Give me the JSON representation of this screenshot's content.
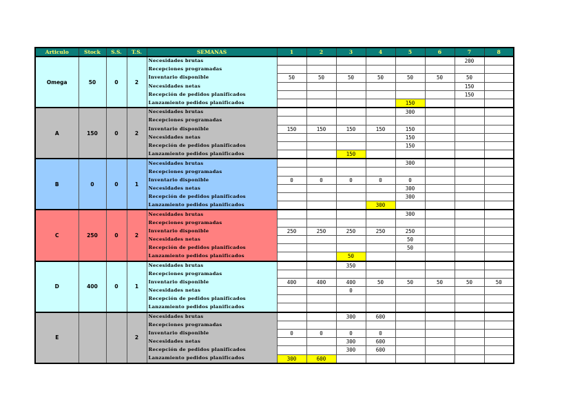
{
  "header": {
    "articulo": "Articulo",
    "stock": "Stock",
    "ss": "S.S.",
    "ts": "T.S.",
    "semanas": "SEMANAS",
    "weeks": [
      "1",
      "2",
      "3",
      "4",
      "5",
      "6",
      "7",
      "8"
    ]
  },
  "row_labels": [
    "Necesidades brutas",
    "Recepciones programadas",
    "Inventario disponible",
    "Necesidades netas",
    "Recepción de pedidos planificados",
    "Lanzamiento pedidos planificados"
  ],
  "highlight_color": "#ffff00",
  "articles": [
    {
      "name": "Omega",
      "stock": "50",
      "ss": "0",
      "ts": "2",
      "color": "#ccffff",
      "rows": [
        [
          "",
          "",
          "",
          "",
          "",
          "",
          "200",
          ""
        ],
        [
          "",
          "",
          "",
          "",
          "",
          "",
          "",
          ""
        ],
        [
          "50",
          "50",
          "50",
          "50",
          "50",
          "50",
          "50",
          ""
        ],
        [
          "",
          "",
          "",
          "",
          "",
          "",
          "150",
          ""
        ],
        [
          "",
          "",
          "",
          "",
          "",
          "",
          "150",
          ""
        ],
        [
          "",
          "",
          "",
          "",
          "150",
          "",
          "",
          ""
        ]
      ]
    },
    {
      "name": "A",
      "stock": "150",
      "ss": "0",
      "ts": "2",
      "color": "#c0c0c0",
      "rows": [
        [
          "",
          "",
          "",
          "",
          "300",
          "",
          "",
          ""
        ],
        [
          "",
          "",
          "",
          "",
          "",
          "",
          "",
          ""
        ],
        [
          "150",
          "150",
          "150",
          "150",
          "150",
          "",
          "",
          ""
        ],
        [
          "",
          "",
          "",
          "",
          "150",
          "",
          "",
          ""
        ],
        [
          "",
          "",
          "",
          "",
          "150",
          "",
          "",
          ""
        ],
        [
          "",
          "",
          "150",
          "",
          "",
          "",
          "",
          ""
        ]
      ]
    },
    {
      "name": "B",
      "stock": "0",
      "ss": "0",
      "ts": "1",
      "color": "#99ccff",
      "rows": [
        [
          "",
          "",
          "",
          "",
          "300",
          "",
          "",
          ""
        ],
        [
          "",
          "",
          "",
          "",
          "",
          "",
          "",
          ""
        ],
        [
          "0",
          "0",
          "0",
          "0",
          "0",
          "",
          "",
          ""
        ],
        [
          "",
          "",
          "",
          "",
          "300",
          "",
          "",
          ""
        ],
        [
          "",
          "",
          "",
          "",
          "300",
          "",
          "",
          ""
        ],
        [
          "",
          "",
          "",
          "300",
          "",
          "",
          "",
          ""
        ]
      ]
    },
    {
      "name": "C",
      "stock": "250",
      "ss": "0",
      "ts": "2",
      "color": "#ff8080",
      "rows": [
        [
          "",
          "",
          "",
          "",
          "300",
          "",
          "",
          ""
        ],
        [
          "",
          "",
          "",
          "",
          "",
          "",
          "",
          ""
        ],
        [
          "250",
          "250",
          "250",
          "250",
          "250",
          "",
          "",
          ""
        ],
        [
          "",
          "",
          "",
          "",
          "50",
          "",
          "",
          ""
        ],
        [
          "",
          "",
          "",
          "",
          "50",
          "",
          "",
          ""
        ],
        [
          "",
          "",
          "50",
          "",
          "",
          "",
          "",
          ""
        ]
      ]
    },
    {
      "name": "D",
      "stock": "400",
      "ss": "0",
      "ts": "1",
      "color": "#ccffff",
      "rows": [
        [
          "",
          "",
          "350",
          "",
          "",
          "",
          "",
          ""
        ],
        [
          "",
          "",
          "",
          "",
          "",
          "",
          "",
          ""
        ],
        [
          "400",
          "400",
          "400",
          "50",
          "50",
          "50",
          "50",
          "50"
        ],
        [
          "",
          "",
          "0",
          "",
          "",
          "",
          "",
          ""
        ],
        [
          "",
          "",
          "",
          "",
          "",
          "",
          "",
          ""
        ],
        [
          "",
          "",
          "",
          "",
          "",
          "",
          "",
          ""
        ]
      ]
    },
    {
      "name": "E",
      "stock": "",
      "ss": "",
      "ts": "2",
      "color": "#c0c0c0",
      "rows": [
        [
          "",
          "",
          "300",
          "600",
          "",
          "",
          "",
          ""
        ],
        [
          "",
          "",
          "",
          "",
          "",
          "",
          "",
          ""
        ],
        [
          "0",
          "0",
          "0",
          "0",
          "",
          "",
          "",
          ""
        ],
        [
          "",
          "",
          "300",
          "600",
          "",
          "",
          "",
          ""
        ],
        [
          "",
          "",
          "300",
          "600",
          "",
          "",
          "",
          ""
        ],
        [
          "300",
          "600",
          "",
          "",
          "",
          "",
          "",
          ""
        ]
      ]
    }
  ]
}
